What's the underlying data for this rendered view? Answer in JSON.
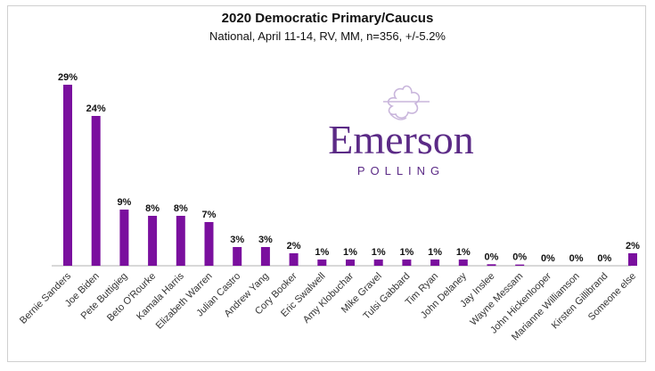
{
  "chart_data": {
    "type": "bar",
    "title": "2020 Democratic Primary/Caucus",
    "subtitle": "National, April 11-14, RV, MM, n=356, +/-5.2%",
    "categories": [
      "Bernie Sanders",
      "Joe Biden",
      "Pete Buttigieg",
      "Beto O'Rourke",
      "Kamala Harris",
      "Elizabeth Warren",
      "Julian Castro",
      "Andrew Yang",
      "Cory Booker",
      "Eric Swalwell",
      "Amy Klobuchar",
      "Mike Gravel",
      "Tulsi Gabbard",
      "Tim Ryan",
      "John Delaney",
      "Jay Inslee",
      "Wayne Messam",
      "John Hickenlooper",
      "Marianne Williamson",
      "Kirsten Gillibrand",
      "Someone else"
    ],
    "values": [
      29,
      24,
      9,
      8,
      8,
      7,
      3,
      3,
      2,
      1,
      1,
      1,
      1,
      1,
      1,
      0.25,
      0.2,
      0,
      0,
      0,
      2
    ],
    "data_labels": [
      "29%",
      "24%",
      "9%",
      "8%",
      "8%",
      "7%",
      "3%",
      "3%",
      "2%",
      "1%",
      "1%",
      "1%",
      "1%",
      "1%",
      "1%",
      "0%",
      "0%",
      "0%",
      "0%",
      "0%",
      "2%"
    ],
    "ylim": [
      0,
      30
    ],
    "grid": false,
    "bar_color": "#7a0f9e",
    "axis_color": "#b0b0b0"
  },
  "logo": {
    "name": "Emerson",
    "tagline": "POLLING",
    "color": "#5b2a86",
    "emblem_color": "#c9b6dc"
  }
}
